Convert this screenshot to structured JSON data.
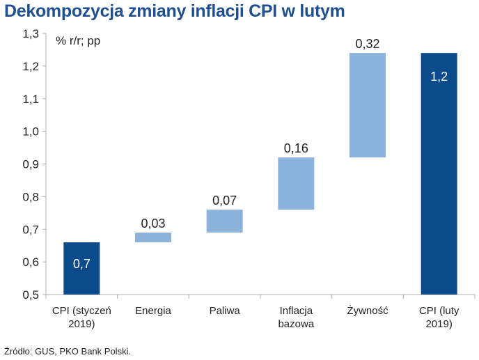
{
  "title": "Dekompozycja zmiany inflacji CPI w lutym",
  "source": "Źródło: GUS, PKO Bank Polski.",
  "chart_data": {
    "type": "bar",
    "subtype": "waterfall",
    "title": "Dekompozycja zmiany inflacji CPI w lutym",
    "unit_label": "% r/r; pp",
    "categories": [
      [
        "CPI (styczeń",
        "2019)"
      ],
      [
        "Energia"
      ],
      [
        "Paliwa"
      ],
      [
        "Inflacja",
        "bazowa"
      ],
      [
        "Żywność"
      ],
      [
        "CPI (luty",
        "2019)"
      ]
    ],
    "bars": [
      {
        "start": 0.5,
        "end": 0.66,
        "label": "0,7",
        "kind": "total"
      },
      {
        "start": 0.66,
        "end": 0.69,
        "label": "0,03",
        "kind": "delta"
      },
      {
        "start": 0.69,
        "end": 0.76,
        "label": "0,07",
        "kind": "delta"
      },
      {
        "start": 0.76,
        "end": 0.92,
        "label": "0,16",
        "kind": "delta"
      },
      {
        "start": 0.92,
        "end": 1.24,
        "label": "0,32",
        "kind": "delta"
      },
      {
        "start": 0.5,
        "end": 1.24,
        "label": "1,2",
        "kind": "total"
      }
    ],
    "ylim": [
      0.5,
      1.3
    ],
    "yticks": [
      0.5,
      0.6,
      0.7,
      0.8,
      0.9,
      1.0,
      1.1,
      1.2,
      1.3
    ],
    "ytick_labels": [
      "0,5",
      "0,6",
      "0,7",
      "0,8",
      "0,9",
      "1,0",
      "1,1",
      "1,2",
      "1,3"
    ],
    "grid": false,
    "legend": "none",
    "colors": {
      "total": "#0b4a8b",
      "delta": "#8db3dc",
      "axis": "#b0b0b0",
      "text": "#222222"
    }
  }
}
